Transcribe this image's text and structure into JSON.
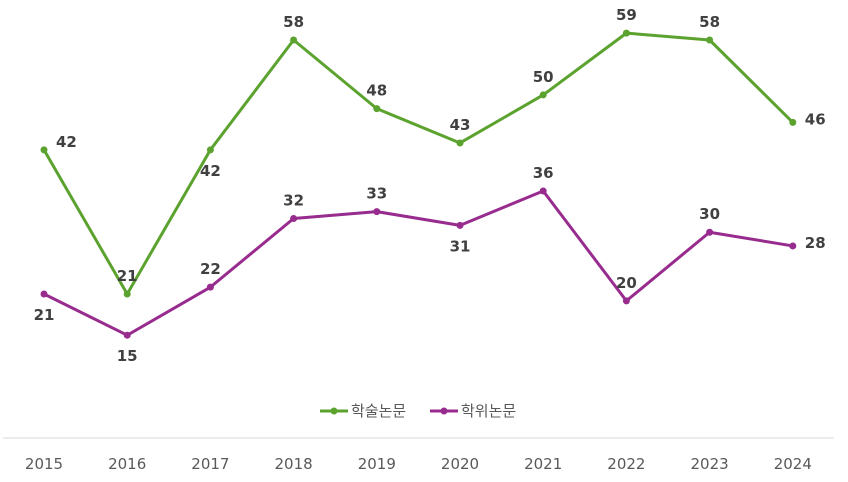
{
  "chart_data": {
    "type": "line",
    "title": "",
    "xlabel": "",
    "ylabel": "",
    "x": [
      "2015",
      "2016",
      "2017",
      "2018",
      "2019",
      "2020",
      "2021",
      "2022",
      "2023",
      "2024"
    ],
    "series": [
      {
        "name": "학술논문",
        "color": "#5BA22F",
        "values": [
          42,
          21,
          42,
          58,
          48,
          43,
          50,
          59,
          58,
          46
        ],
        "label_pos": [
          "right",
          "above",
          "below",
          "above",
          "above",
          "above",
          "above",
          "above",
          "above",
          "right"
        ]
      },
      {
        "name": "학위논문",
        "color": "#982B8E",
        "values": [
          21,
          15,
          22,
          32,
          33,
          31,
          36,
          20,
          30,
          28
        ],
        "label_pos": [
          "below",
          "below",
          "above",
          "above",
          "above",
          "below",
          "above",
          "above",
          "above",
          "right"
        ]
      }
    ],
    "grid": false,
    "legend": "bottom-center",
    "data_labels": true
  }
}
